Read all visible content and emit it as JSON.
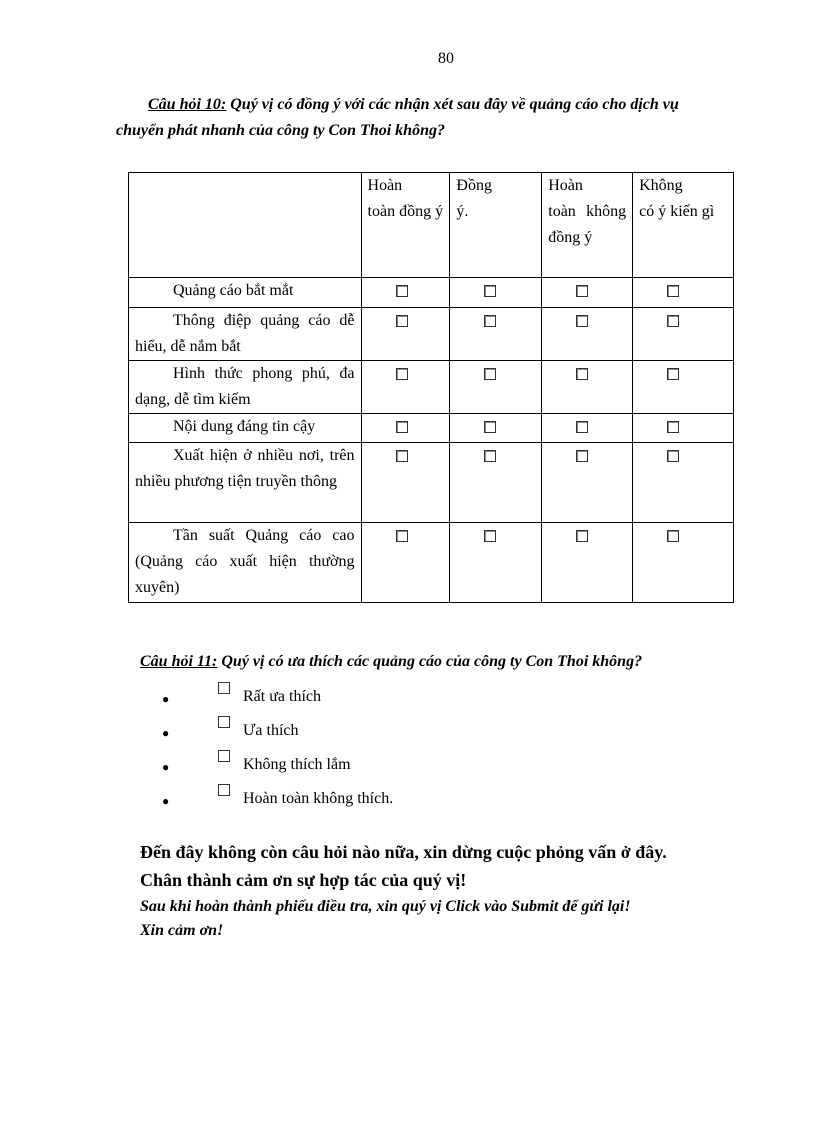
{
  "page_number": "80",
  "q10": {
    "label": "Câu hỏi 10:",
    "text_line1": " Quý vị có đồng ý với các nhận xét sau đây về quảng cáo cho dịch vụ",
    "text_line2": "chuyển phát nhanh của công ty Con Thoi không?",
    "columns": [
      {
        "first": "Hoàn",
        "rest": "toàn đồng ý"
      },
      {
        "first": "Đồng",
        "rest": "ý."
      },
      {
        "first": "Hoàn",
        "rest": "toàn không đồng ý"
      },
      {
        "first": "Không",
        "rest": "có ý kiến gì"
      }
    ],
    "rows": [
      "Quảng cáo bắt mắt",
      "Thông điệp quảng cáo dễ hiểu, dễ nắm bắt",
      "Hình thức phong phú, đa dạng, dễ tìm kiếm",
      "Nội dung đáng tin cậy",
      "Xuất hiện ở nhiều nơi, trên nhiều phương tiện truyền thông",
      "Tần suất Quảng cáo cao (Quảng cáo xuất hiện thường xuyên)"
    ]
  },
  "q11": {
    "label": "Câu hỏi 11:",
    "text": " Quý vị có ưa thích các quảng cáo của công ty Con Thoi không?",
    "options": [
      "Rất ưa thích",
      "Ưa thích",
      "Không thích lắm",
      "Hoàn toàn không thích."
    ]
  },
  "closing": {
    "line1": "Đến đây không còn câu hỏi nào nữa, xin dừng cuộc phỏng vấn ở đây.",
    "line2": "Chân thành cảm ơn sự hợp tác của quý vị!",
    "line3": "Sau khi hoàn thành phiếu điều tra, xin quý vị Click vào Submit để gửi lại!",
    "line4": "Xin cảm ơn!"
  }
}
